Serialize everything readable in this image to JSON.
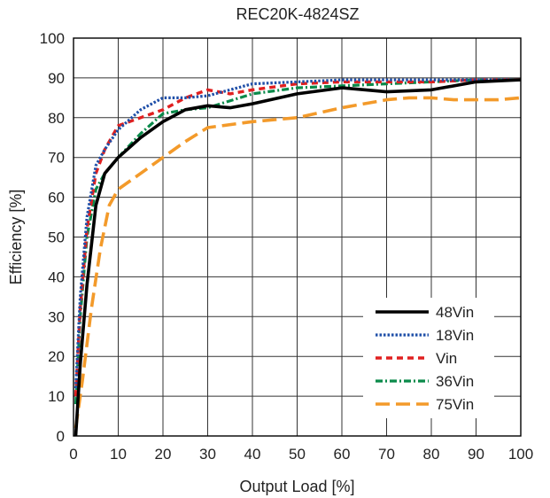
{
  "chart_data": {
    "type": "line",
    "title": "REC20K-4824SZ",
    "xlabel": "Output Load [%]",
    "ylabel": "Efficiency [%]",
    "xlim": [
      0,
      100
    ],
    "ylim": [
      0,
      100
    ],
    "xticks": [
      0,
      10,
      20,
      30,
      40,
      50,
      60,
      70,
      80,
      90,
      100
    ],
    "yticks": [
      0,
      10,
      20,
      30,
      40,
      50,
      60,
      70,
      80,
      90,
      100
    ],
    "grid": true,
    "legend_position": "bottom-right",
    "series": [
      {
        "name": "48Vin",
        "color": "#000000",
        "dash": "solid",
        "points": [
          [
            0.5,
            0
          ],
          [
            1.5,
            18
          ],
          [
            3,
            38
          ],
          [
            5,
            58
          ],
          [
            7,
            66
          ],
          [
            10,
            70
          ],
          [
            15,
            75
          ],
          [
            20,
            79
          ],
          [
            25,
            82
          ],
          [
            30,
            83
          ],
          [
            35,
            82.5
          ],
          [
            40,
            83.5
          ],
          [
            50,
            86
          ],
          [
            60,
            87.5
          ],
          [
            70,
            86.5
          ],
          [
            80,
            87
          ],
          [
            90,
            89
          ],
          [
            100,
            89.5
          ]
        ]
      },
      {
        "name": "18Vin",
        "color": "#1f4fa8",
        "dash": "dotted",
        "points": [
          [
            0.5,
            12
          ],
          [
            1.5,
            35
          ],
          [
            3,
            55
          ],
          [
            5,
            68
          ],
          [
            7,
            72
          ],
          [
            10,
            77
          ],
          [
            15,
            82
          ],
          [
            20,
            85
          ],
          [
            25,
            85
          ],
          [
            30,
            85.5
          ],
          [
            40,
            88.5
          ],
          [
            50,
            89
          ],
          [
            60,
            89.5
          ],
          [
            70,
            89.5
          ],
          [
            80,
            89.5
          ],
          [
            90,
            89.5
          ],
          [
            100,
            89.5
          ]
        ]
      },
      {
        "name": "Vin",
        "color": "#e02020",
        "dash": "dashed",
        "points": [
          [
            0.5,
            10
          ],
          [
            1.5,
            32
          ],
          [
            3,
            52
          ],
          [
            5,
            66
          ],
          [
            7,
            72
          ],
          [
            10,
            78
          ],
          [
            15,
            80
          ],
          [
            20,
            82
          ],
          [
            25,
            85
          ],
          [
            30,
            87
          ],
          [
            35,
            86
          ],
          [
            40,
            87
          ],
          [
            50,
            88.5
          ],
          [
            60,
            89
          ],
          [
            70,
            89
          ],
          [
            80,
            89
          ],
          [
            90,
            89.5
          ],
          [
            100,
            89.5
          ]
        ]
      },
      {
        "name": "36Vin",
        "color": "#0a8a4a",
        "dash": "dashdot",
        "points": [
          [
            0.5,
            8
          ],
          [
            1.5,
            30
          ],
          [
            3,
            50
          ],
          [
            5,
            62
          ],
          [
            7,
            66
          ],
          [
            10,
            70
          ],
          [
            15,
            76
          ],
          [
            20,
            81
          ],
          [
            25,
            82
          ],
          [
            30,
            82.5
          ],
          [
            40,
            86
          ],
          [
            50,
            87.5
          ],
          [
            60,
            88
          ],
          [
            70,
            88.5
          ],
          [
            80,
            89
          ],
          [
            90,
            89.5
          ],
          [
            100,
            89.5
          ]
        ]
      },
      {
        "name": "75Vin",
        "color": "#f39a2a",
        "dash": "longdash",
        "points": [
          [
            0.5,
            2
          ],
          [
            2,
            14
          ],
          [
            4,
            32
          ],
          [
            6,
            47
          ],
          [
            8,
            58
          ],
          [
            10,
            62
          ],
          [
            15,
            66
          ],
          [
            20,
            70
          ],
          [
            25,
            74
          ],
          [
            30,
            77.5
          ],
          [
            40,
            79
          ],
          [
            50,
            80
          ],
          [
            60,
            82.5
          ],
          [
            70,
            84.5
          ],
          [
            75,
            85
          ],
          [
            80,
            85
          ],
          [
            85,
            84.5
          ],
          [
            90,
            84.5
          ],
          [
            95,
            84.5
          ],
          [
            100,
            85
          ]
        ]
      }
    ]
  }
}
